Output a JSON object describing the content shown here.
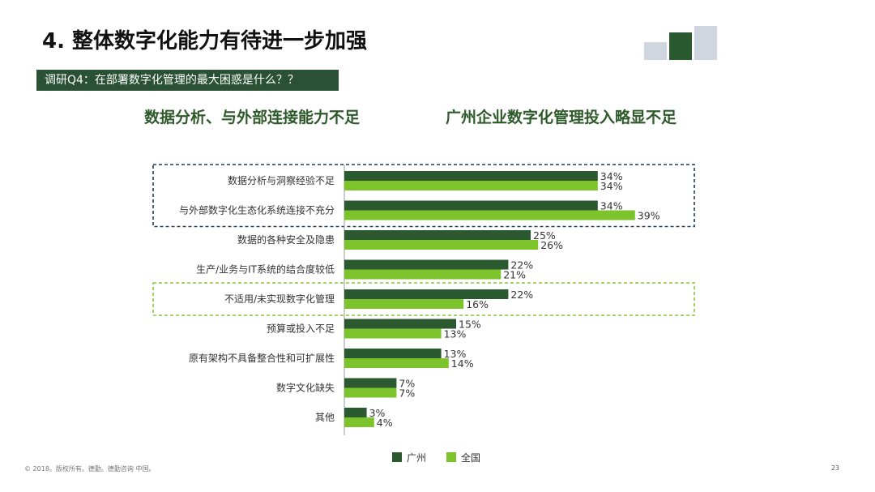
{
  "title": "4. 整体数字化能力有待进一步加强",
  "question_banner": "调研Q4：在部署数字化管理的最大困惑是什么？？",
  "headlines": {
    "left": "数据分析、与外部连接能力不足",
    "right": "广州企业数字化管理投入略显不足"
  },
  "colors": {
    "guangzhou": "#2b5a30",
    "national": "#7dc32b",
    "dark_box": "#1f3b5c",
    "light_box": "#8cc63f",
    "banner": "#2a5134"
  },
  "chart_data": {
    "type": "bar",
    "orientation": "horizontal",
    "categories": [
      "数据分析与洞察经验不足",
      "与外部数字化生态化系统连接不充分",
      "数据的各种安全及隐患",
      "生产/业务与IT系统的结合度较低",
      "不适用/未实现数字化管理",
      "预算或投入不足",
      "原有架构不具备整合性和可扩展性",
      "数字文化缺失",
      "其他"
    ],
    "series": [
      {
        "name": "广州",
        "values": [
          34,
          34,
          25,
          22,
          22,
          15,
          13,
          7,
          3
        ]
      },
      {
        "name": "全国",
        "values": [
          34,
          39,
          26,
          21,
          16,
          13,
          14,
          7,
          4
        ]
      }
    ],
    "value_labels": {
      "广州": [
        "34%",
        "34%",
        "25%",
        "22%",
        "22%",
        "15%",
        "13%",
        "7%",
        "3%"
      ],
      "全国": [
        "34%",
        "39%",
        "26%",
        "21%",
        "16%",
        "13%",
        "14%",
        "7%",
        "4%"
      ]
    },
    "legend": [
      "广州",
      "全国"
    ],
    "legend_position": "bottom",
    "highlight_groups": [
      {
        "style": "dark-dashed",
        "categories": [
          0,
          1
        ]
      },
      {
        "style": "light-dashed",
        "categories": [
          4
        ]
      }
    ],
    "xlabel": "",
    "ylabel": ""
  },
  "footer": {
    "left": "© 2018。版权所有。德勤。德勤咨询 中国。",
    "page_number": "23"
  }
}
